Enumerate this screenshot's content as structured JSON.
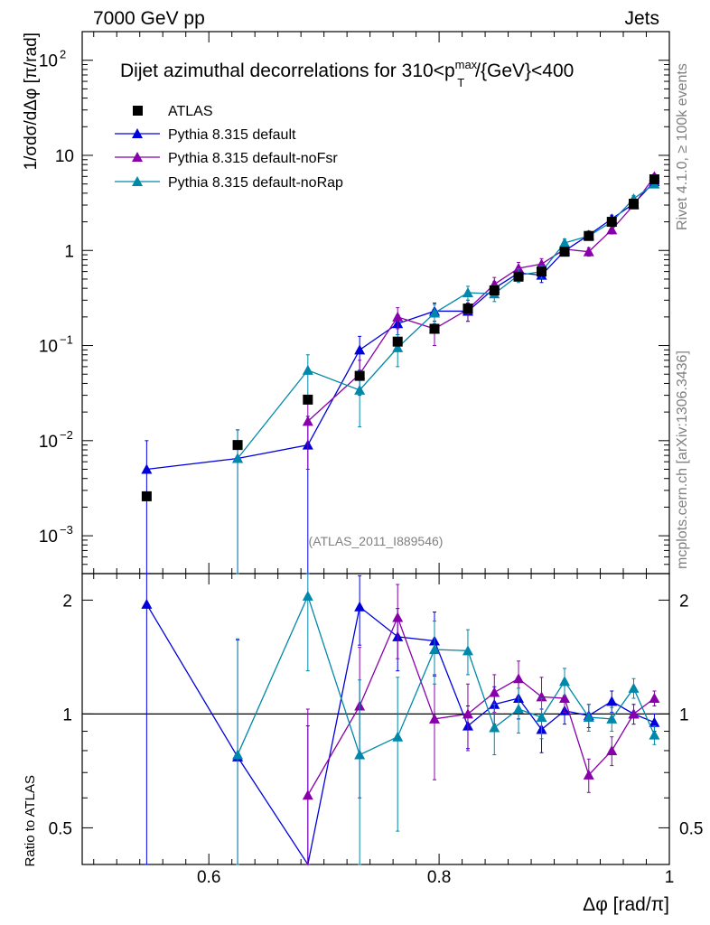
{
  "header": {
    "left": "7000 GeV pp",
    "right": "Jets"
  },
  "side_labels": {
    "rivet": "Rivet 4.1.0, ≥ 100k events",
    "mcplots": "mcplots.cern.ch [arXiv:1306.3436]"
  },
  "chart_data": {
    "type": "line",
    "title": "Dijet azimuthal decorrelations for 310<p_T^max/{GeV}<400",
    "title_parts": {
      "pre": "Dijet azimuthal decorrelations for 310<p",
      "sup": "max",
      "sub": "T",
      "post": "/{GeV}<400"
    },
    "analysis_label": "(ATLAS_2011_I889546)",
    "xlabel": "Δφ [rad/π]",
    "ylabel": "1/σdσ/dΔφ [π/rad]",
    "ratio_ylabel": "Ratio to ATLAS",
    "xlim": [
      0.49,
      1.0
    ],
    "ylim": [
      0.0004,
      200
    ],
    "ratio_ylim": [
      0.4,
      2.35
    ],
    "yscale": "log",
    "x_ticks": [
      {
        "v": 0.6,
        "label": "0.6"
      },
      {
        "v": 0.8,
        "label": "0.8"
      },
      {
        "v": 1.0,
        "label": "1"
      }
    ],
    "y_ticks": [
      {
        "v": 0.001,
        "base": "10",
        "exp": "−3"
      },
      {
        "v": 0.01,
        "base": "10",
        "exp": "−2"
      },
      {
        "v": 0.1,
        "base": "10",
        "exp": "−1"
      },
      {
        "v": 1,
        "base": "1",
        "exp": ""
      },
      {
        "v": 10,
        "base": "10",
        "exp": ""
      },
      {
        "v": 100,
        "base": "10",
        "exp": "2"
      }
    ],
    "ratio_ticks": [
      {
        "v": 0.5,
        "label": "0.5"
      },
      {
        "v": 1,
        "label": "1"
      },
      {
        "v": 2,
        "label": "2"
      }
    ],
    "legend_position": "top-left",
    "series": [
      {
        "name": "ATLAS",
        "color": "#000000",
        "marker": "square",
        "x": [
          0.546,
          0.625,
          0.686,
          0.731,
          0.764,
          0.796,
          0.825,
          0.848,
          0.869,
          0.889,
          0.909,
          0.93,
          0.95,
          0.969,
          0.987
        ],
        "y": [
          0.0026,
          0.009,
          0.027,
          0.048,
          0.11,
          0.15,
          0.245,
          0.38,
          0.53,
          0.6,
          0.97,
          1.42,
          2.0,
          3.1,
          5.6
        ],
        "yerr": [
          0,
          0,
          0,
          0,
          0,
          0,
          0,
          0,
          0,
          0,
          0,
          0,
          0,
          0,
          0
        ]
      },
      {
        "name": "Pythia 8.315 default",
        "color": "#0000dd",
        "marker": "triangle",
        "x": [
          0.546,
          0.625,
          0.686,
          0.731,
          0.764,
          0.796,
          0.825,
          0.848,
          0.869,
          0.889,
          0.909,
          0.93,
          0.95,
          0.969,
          0.987
        ],
        "y": [
          0.005,
          0.0065,
          0.009,
          0.09,
          0.17,
          0.23,
          0.23,
          0.4,
          0.58,
          0.55,
          0.99,
          1.45,
          2.15,
          3.1,
          5.3
        ],
        "yerr": [
          0.005,
          0.0065,
          0.009,
          0.035,
          0.04,
          0.05,
          0.05,
          0.07,
          0.1,
          0.09,
          0.11,
          0.15,
          0.2,
          0.25,
          0.35
        ],
        "ratio": [
          1.95,
          0.77,
          0.33,
          1.92,
          1.6,
          1.56,
          0.93,
          1.06,
          1.1,
          0.91,
          1.02,
          0.99,
          1.08,
          1.0,
          0.95
        ],
        "ratio_err": [
          1.7,
          0.8,
          0.6,
          0.4,
          0.3,
          0.3,
          0.12,
          0.12,
          0.13,
          0.12,
          0.08,
          0.07,
          0.07,
          0.06,
          0.05
        ]
      },
      {
        "name": "Pythia 8.315 default-noFsr",
        "color": "#8800aa",
        "marker": "triangle",
        "x": [
          0.686,
          0.731,
          0.764,
          0.796,
          0.825,
          0.848,
          0.869,
          0.889,
          0.909,
          0.93,
          0.95,
          0.969,
          0.987
        ],
        "y": [
          0.016,
          0.05,
          0.2,
          0.15,
          0.24,
          0.44,
          0.65,
          0.72,
          1.03,
          0.97,
          1.65,
          3.0,
          6.0
        ],
        "yerr": [
          0.011,
          0.02,
          0.05,
          0.05,
          0.06,
          0.08,
          0.1,
          0.1,
          0.12,
          0.1,
          0.16,
          0.25,
          0.4
        ],
        "ratio": [
          0.61,
          1.05,
          1.8,
          0.97,
          1.0,
          1.14,
          1.24,
          1.11,
          1.1,
          0.69,
          0.8,
          1.0,
          1.1
        ],
        "ratio_err": [
          0.42,
          0.45,
          0.4,
          0.3,
          0.2,
          0.13,
          0.14,
          0.14,
          0.09,
          0.07,
          0.07,
          0.06,
          0.05
        ]
      },
      {
        "name": "Pythia 8.315 default-noRap",
        "color": "#0088aa",
        "marker": "triangle",
        "x": [
          0.625,
          0.686,
          0.731,
          0.764,
          0.796,
          0.825,
          0.848,
          0.869,
          0.889,
          0.909,
          0.93,
          0.95,
          0.969,
          0.987
        ],
        "y": [
          0.0065,
          0.055,
          0.034,
          0.095,
          0.22,
          0.36,
          0.35,
          0.55,
          0.6,
          1.2,
          1.42,
          2.0,
          3.5,
          5.0
        ],
        "yerr": [
          0.0065,
          0.025,
          0.02,
          0.035,
          0.05,
          0.06,
          0.06,
          0.09,
          0.09,
          0.12,
          0.14,
          0.18,
          0.28,
          0.35
        ],
        "ratio": [
          0.78,
          2.05,
          0.78,
          0.87,
          1.48,
          1.47,
          0.92,
          1.03,
          0.98,
          1.22,
          0.98,
          0.97,
          1.17,
          0.88
        ],
        "ratio_err": [
          0.8,
          0.75,
          0.45,
          0.38,
          0.28,
          0.2,
          0.14,
          0.14,
          0.12,
          0.1,
          0.08,
          0.07,
          0.07,
          0.05
        ]
      }
    ]
  }
}
